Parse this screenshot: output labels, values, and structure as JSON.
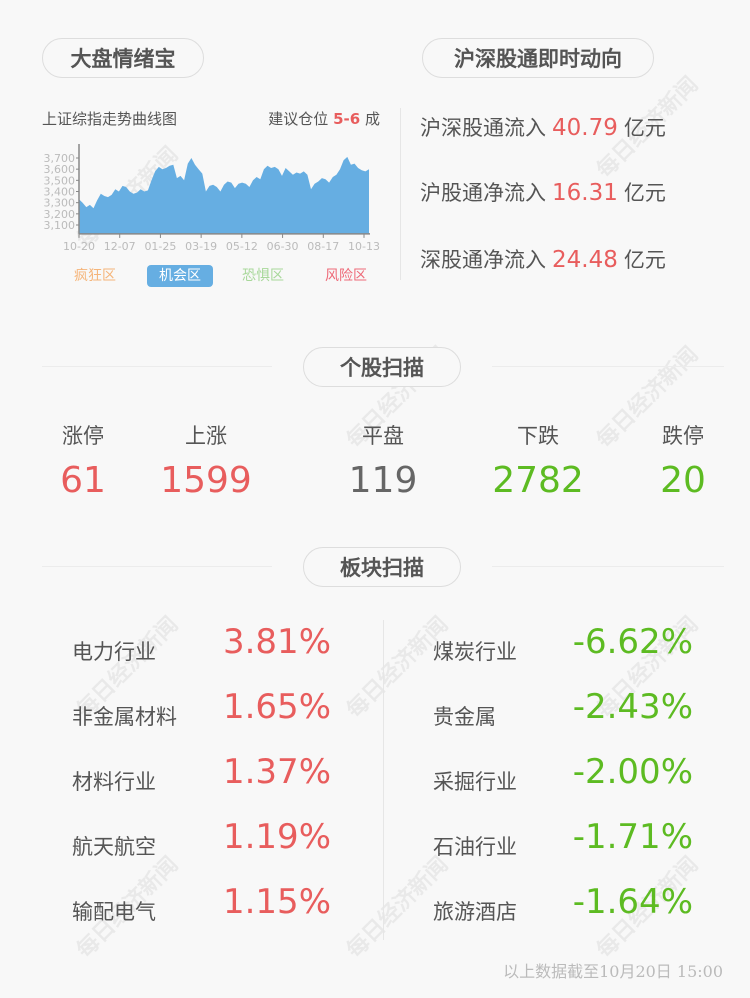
{
  "watermark": "每日经济新闻",
  "left_header": {
    "title": "大盘情绪宝",
    "chart_title": "上证综指走势曲线图",
    "advice_label": "建议仓位",
    "advice_value": "5-6",
    "advice_unit": "成"
  },
  "zones": [
    {
      "label": "疯狂区",
      "color": "#f5b57a"
    },
    {
      "label": "机会区",
      "color": "#ffffff",
      "active": true
    },
    {
      "label": "恐惧区",
      "color": "#a8d89a"
    },
    {
      "label": "风险区",
      "color": "#ee6a78"
    }
  ],
  "chart_data": {
    "type": "area",
    "title": "上证综指走势曲线图",
    "ylim": [
      3020,
      3760
    ],
    "yticks": [
      "3,700",
      "3,600",
      "3,500",
      "3,400",
      "3,300",
      "3,200",
      "3,100"
    ],
    "ytick_values": [
      3700,
      3600,
      3500,
      3400,
      3300,
      3200,
      3100
    ],
    "xticks": [
      "10-20",
      "12-07",
      "01-25",
      "03-19",
      "05-12",
      "06-30",
      "08-17",
      "10-13"
    ],
    "color": "#66aee2",
    "values": [
      3330,
      3300,
      3260,
      3280,
      3250,
      3320,
      3380,
      3360,
      3350,
      3370,
      3420,
      3400,
      3450,
      3440,
      3400,
      3380,
      3390,
      3420,
      3400,
      3410,
      3500,
      3580,
      3620,
      3600,
      3610,
      3630,
      3640,
      3520,
      3540,
      3500,
      3650,
      3700,
      3640,
      3600,
      3560,
      3400,
      3450,
      3460,
      3440,
      3400,
      3460,
      3490,
      3480,
      3430,
      3470,
      3480,
      3470,
      3440,
      3500,
      3530,
      3510,
      3600,
      3630,
      3610,
      3620,
      3600,
      3540,
      3610,
      3580,
      3550,
      3570,
      3560,
      3580,
      3550,
      3420,
      3470,
      3490,
      3520,
      3510,
      3480,
      3530,
      3550,
      3600,
      3680,
      3710,
      3640,
      3650,
      3610,
      3590,
      3580,
      3600
    ]
  },
  "right_header": {
    "title": "沪深股通即时动向"
  },
  "flows": [
    {
      "label": "沪深股通流入",
      "value": "40.79",
      "unit": "亿元"
    },
    {
      "label": "沪股通净流入",
      "value": "16.31",
      "unit": "亿元"
    },
    {
      "label": "深股通净流入",
      "value": "24.48",
      "unit": "亿元"
    }
  ],
  "stock_scan": {
    "title": "个股扫描",
    "items": [
      {
        "label": "涨停",
        "value": "61",
        "color": "#e85d5d"
      },
      {
        "label": "上涨",
        "value": "1599",
        "color": "#e85d5d"
      },
      {
        "label": "平盘",
        "value": "119",
        "color": "#666666"
      },
      {
        "label": "下跌",
        "value": "2782",
        "color": "#5dbb22"
      },
      {
        "label": "跌停",
        "value": "20",
        "color": "#5dbb22"
      }
    ]
  },
  "sector_scan": {
    "title": "板块扫描",
    "gainers": [
      {
        "name": "电力行业",
        "value": "3.81%"
      },
      {
        "name": "非金属材料",
        "value": "1.65%"
      },
      {
        "name": "材料行业",
        "value": "1.37%"
      },
      {
        "name": "航天航空",
        "value": "1.19%"
      },
      {
        "name": "输配电气",
        "value": "1.15%"
      }
    ],
    "losers": [
      {
        "name": "煤炭行业",
        "value": "-6.62%"
      },
      {
        "name": "贵金属",
        "value": "-2.43%"
      },
      {
        "name": "采掘行业",
        "value": "-2.00%"
      },
      {
        "name": "石油行业",
        "value": "-1.71%"
      },
      {
        "name": "旅游酒店",
        "value": "-1.64%"
      }
    ]
  },
  "footer": "以上数据截至10月20日 15:00"
}
